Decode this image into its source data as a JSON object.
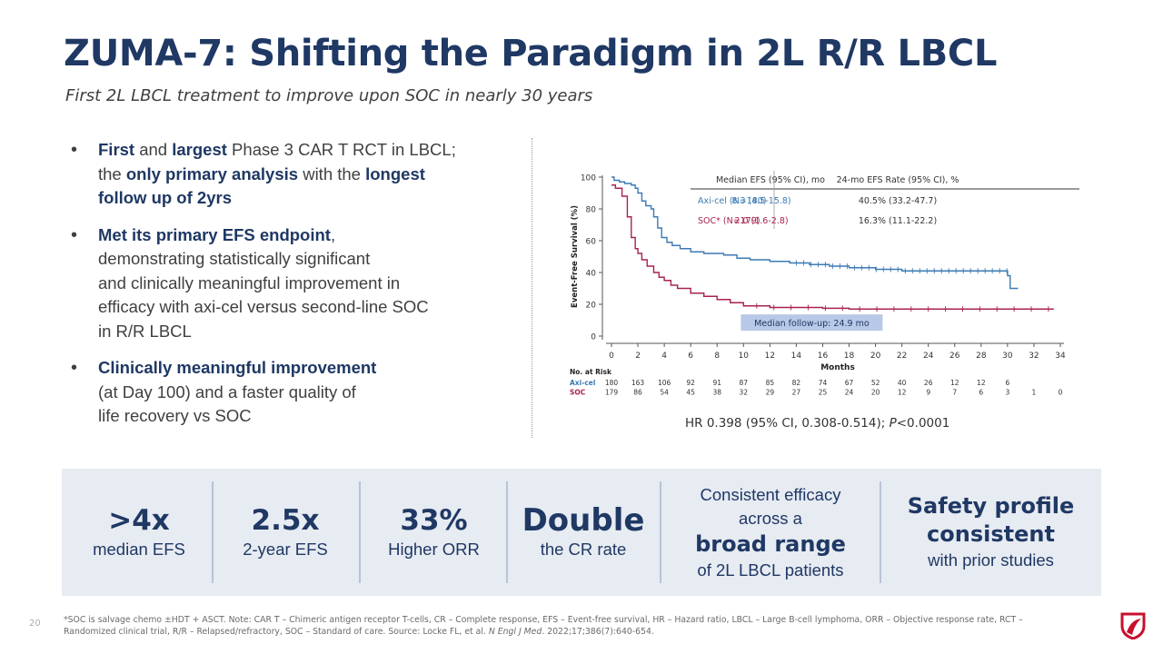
{
  "header": {
    "title": "ZUMA-7: Shifting the Paradigm in 2L R/R LBCL",
    "subtitle": "First 2L LBCL treatment to improve upon SOC in nearly 30 years"
  },
  "bullets": [
    {
      "runs": [
        [
          "First",
          true
        ],
        [
          " and ",
          false
        ],
        [
          "largest",
          true
        ],
        [
          " Phase 3 CAR T RCT in LBCL;",
          false
        ],
        [
          "\n",
          false
        ],
        [
          "the ",
          false
        ],
        [
          "only primary analysis",
          true
        ],
        [
          " with the ",
          false
        ],
        [
          "longest",
          true
        ],
        [
          "\n",
          false
        ],
        [
          "follow up of 2yrs",
          true
        ]
      ]
    },
    {
      "runs": [
        [
          "Met its primary EFS endpoint",
          true
        ],
        [
          ",",
          false
        ],
        [
          "\n",
          false
        ],
        [
          "demonstrating statistically significant",
          false
        ],
        [
          "\n",
          false
        ],
        [
          "and clinically meaningful improvement in",
          false
        ],
        [
          "\n",
          false
        ],
        [
          "efficacy with axi-cel versus second-line SOC",
          false
        ],
        [
          "\n",
          false
        ],
        [
          "in R/R LBCL",
          false
        ]
      ]
    },
    {
      "runs": [
        [
          "Clinically meaningful improvement",
          true
        ],
        [
          "\n",
          false
        ],
        [
          "(at Day 100) and a faster quality of",
          false
        ],
        [
          "\n",
          false
        ],
        [
          "life recovery vs SOC",
          false
        ]
      ]
    }
  ],
  "chart_data": {
    "type": "line",
    "xlabel": "Months",
    "ylabel": "Event-Free Survival (%)",
    "xlim": [
      0,
      34
    ],
    "ylim": [
      0,
      100
    ],
    "xticks": [
      0,
      2,
      4,
      6,
      8,
      10,
      12,
      14,
      16,
      18,
      20,
      22,
      24,
      26,
      28,
      30,
      32,
      34
    ],
    "yticks": [
      0,
      20,
      40,
      60,
      80,
      100
    ],
    "series": [
      {
        "name": "Axi-cel (N=180)",
        "color": "#3c7ab4",
        "x": [
          0,
          0.2,
          0.6,
          1.0,
          1.5,
          1.8,
          2.0,
          2.3,
          2.6,
          3.0,
          3.2,
          3.5,
          3.8,
          4.2,
          4.6,
          5.2,
          6.0,
          7.0,
          8.5,
          9.5,
          10.5,
          12.0,
          13.5,
          15.0,
          16.5,
          18.0,
          20.0,
          22.0,
          24.0,
          26.0,
          28.0,
          29.2,
          30.0,
          30.2,
          30.8
        ],
        "y": [
          100,
          98,
          97,
          96,
          95,
          93,
          90,
          85,
          82,
          80,
          75,
          68,
          62,
          59,
          57,
          55,
          53,
          52,
          51,
          49,
          48,
          47,
          46,
          45,
          44,
          43,
          42,
          41,
          41,
          41,
          41,
          41,
          38,
          30,
          30
        ]
      },
      {
        "name": "SOC* (N=179)",
        "color": "#a8234c",
        "x": [
          0,
          0.3,
          0.8,
          1.2,
          1.5,
          1.8,
          2.0,
          2.3,
          2.7,
          3.2,
          3.6,
          4.0,
          4.5,
          5.0,
          6.0,
          7.0,
          8.0,
          9.0,
          10.0,
          12.0,
          14.0,
          16.0,
          18.0,
          20.0,
          24.0,
          28.0,
          33.5
        ],
        "y": [
          95,
          93,
          88,
          75,
          62,
          55,
          52,
          48,
          44,
          40,
          37,
          35,
          32,
          30,
          27,
          25,
          23,
          21,
          19,
          18,
          18,
          17.5,
          17,
          17,
          17,
          17,
          17
        ]
      }
    ],
    "table": {
      "headers": [
        "",
        "Median EFS (95% CI), mo",
        "24-mo EFS Rate (95% CI), %"
      ],
      "rows": [
        [
          "Axi-cel (N=180)",
          "8.3 (4.5-15.8)",
          "40.5% (33.2-47.7)"
        ],
        [
          "SOC* (N=179)",
          "2.0 (1.6-2.8)",
          "16.3% (11.1-22.2)"
        ]
      ]
    },
    "annotation": "Median follow-up: 24.9 mo",
    "at_risk": {
      "title": "No. at Risk",
      "rows": [
        {
          "label": "Axi-cel",
          "values": [
            "180",
            "163",
            "106",
            "92",
            "91",
            "87",
            "85",
            "82",
            "74",
            "67",
            "52",
            "40",
            "26",
            "12",
            "12",
            "6"
          ]
        },
        {
          "label": "SOC",
          "values": [
            "179",
            "86",
            "54",
            "45",
            "38",
            "32",
            "29",
            "27",
            "25",
            "24",
            "20",
            "12",
            "9",
            "7",
            "6",
            "3",
            "1",
            "0"
          ]
        }
      ]
    }
  },
  "hr": {
    "prefix": "HR 0.398 (95% CI, 0.308-0.514); ",
    "p": "P",
    "suffix": "<0.0001"
  },
  "stats": [
    {
      "big": ">4x",
      "small": "median EFS"
    },
    {
      "big": "2.5x",
      "small": "2-year EFS"
    },
    {
      "big": "33%",
      "small": "Higher ORR"
    },
    {
      "big": "Double",
      "small": "the CR rate"
    },
    {
      "line1": "Consistent efficacy",
      "line2": "across a",
      "line3": "broad range",
      "line4": "of 2L LBCL patients"
    },
    {
      "line1": "Safety profile",
      "line2": "consistent",
      "line3": "with prior studies"
    }
  ],
  "footnote": {
    "text": "*SOC is salvage chemo ±HDT + ASCT. Note: CAR T – Chimeric antigen receptor T-cells, CR – Complete response, EFS – Event-free survival, HR – Hazard ratio, LBCL – Large B-cell lymphoma, ORR – Objective response rate, RCT – Randomized clinical trial, R/R – Relapsed/refractory, SOC – Standard of care. Source: Locke FL, et al. ",
    "journal": "N Engl J Med",
    "citation": ". 2022;17;386(7):640-654."
  },
  "page_number": "20",
  "colors": {
    "navy": "#1f3864",
    "axi": "#3c7ab4",
    "soc": "#a8234c",
    "band": "#e7ebf2",
    "logo": "#c8102e"
  }
}
